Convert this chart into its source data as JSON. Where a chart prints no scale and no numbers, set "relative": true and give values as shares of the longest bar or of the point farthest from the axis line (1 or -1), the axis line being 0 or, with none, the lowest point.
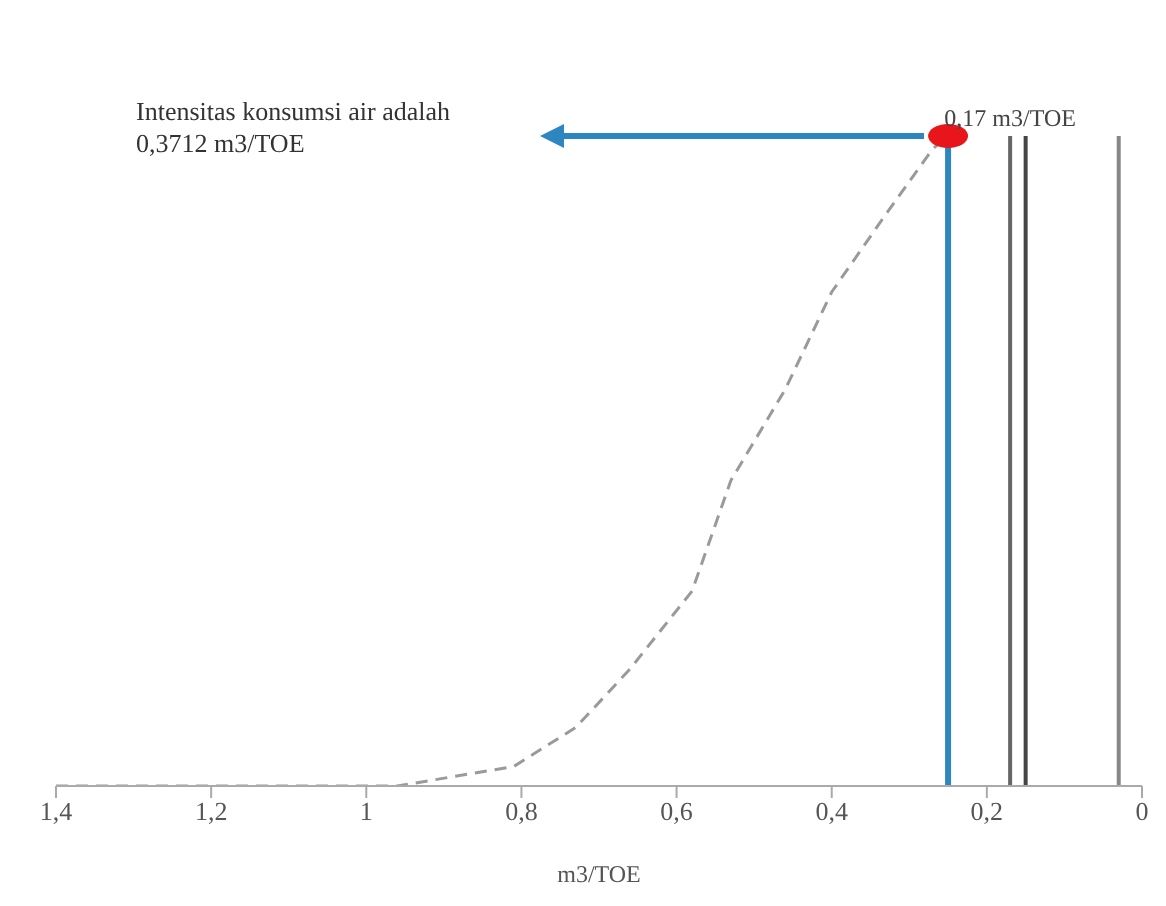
{
  "chart_data": {
    "type": "line",
    "relative": true,
    "xlabel": "m3/TOE",
    "x": [
      1.4,
      1.25,
      1.04,
      0.96,
      0.81,
      0.73,
      0.66,
      0.58,
      0.53,
      0.46,
      0.4,
      0.33,
      0.27,
      0.25
    ],
    "series": [
      {
        "color": "#9a9a9a",
        "values": [
          0,
          0,
          0,
          0,
          0.03,
          0.09,
          0.18,
          0.3,
          0.47,
          0.61,
          0.76,
          0.88,
          0.98,
          1
        ]
      }
    ],
    "line_style": "dashed",
    "xlim": [
      1.4,
      0
    ],
    "xticks": [
      {
        "value": 1.4,
        "label": "1,4"
      },
      {
        "value": 1.2,
        "label": "1,2"
      },
      1,
      {
        "value": 0.8,
        "label": "0,8"
      },
      {
        "value": 0.6,
        "label": "0,6"
      },
      {
        "value": 0.4,
        "label": "0,4"
      },
      {
        "value": 0.2,
        "label": "0,2"
      },
      0
    ],
    "ref_lines": [
      {
        "axis": "x",
        "value": 0.25,
        "color": "#2e86c1"
      },
      {
        "axis": "x",
        "value": 0.17,
        "label": "0,17 m3/TOE",
        "color": "#666666"
      },
      {
        "axis": "x",
        "value": 0.15,
        "color": "#444444"
      },
      {
        "axis": "x",
        "value": 0.03,
        "color": "#888888"
      }
    ],
    "annotations": [
      "Intensitas konsumsi air adalah 0,3712 m3/TOE"
    ]
  }
}
